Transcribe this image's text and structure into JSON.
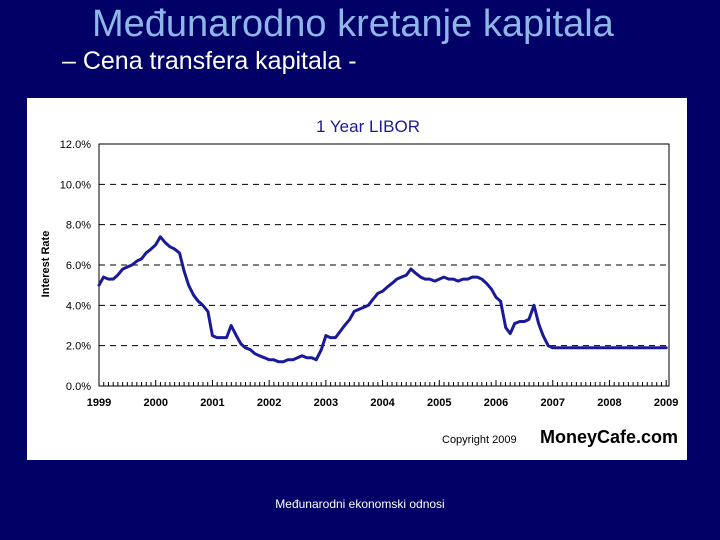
{
  "slide": {
    "title": "Međunarodno kretanje kapitala",
    "subtitle": "– Cena transfera kapitala -",
    "footer": "Međunarodni ekonomski odnosi"
  },
  "chart_data": {
    "type": "line",
    "title": "1 Year LIBOR",
    "ylabel": "Interest Rate",
    "xlabel": "",
    "ylim": [
      0,
      12
    ],
    "xlim": [
      1999,
      2009.05
    ],
    "y_ticks": [
      0,
      2,
      4,
      6,
      8,
      10,
      12
    ],
    "y_tick_labels": [
      "0.0%",
      "2.0%",
      "4.0%",
      "6.0%",
      "8.0%",
      "10.0%",
      "12.0%"
    ],
    "x_ticks": [
      1999,
      2000,
      2001,
      2002,
      2003,
      2004,
      2005,
      2006,
      2007,
      2008,
      2009
    ],
    "x_tick_labels": [
      "1999",
      "2000",
      "2001",
      "2002",
      "2003",
      "2004",
      "2005",
      "2006",
      "2007",
      "2008",
      "2009"
    ],
    "grid": "horizontal dashed",
    "copyright": "Copyright 2009",
    "brand": "MoneyCafe.com",
    "line_color": "#1a1a99",
    "series": [
      {
        "x": [
          1999.0,
          1999.08,
          1999.17,
          1999.25,
          1999.33,
          1999.42,
          1999.5,
          1999.58,
          1999.67,
          1999.75,
          1999.83,
          1999.92,
          2000.0,
          2000.08,
          2000.17,
          2000.25,
          2000.33,
          2000.42,
          2000.5,
          2000.58,
          2000.67,
          2000.75,
          2000.83,
          2000.92,
          2001.0,
          2001.08,
          2001.17,
          2001.25,
          2001.33,
          2001.42,
          2001.5,
          2001.58,
          2001.67,
          2001.75,
          2001.83,
          2001.92,
          2002.0,
          2002.08,
          2002.17,
          2002.25,
          2002.33,
          2002.42,
          2002.5,
          2002.58,
          2002.67,
          2002.75,
          2002.83,
          2002.92,
          2003.0,
          2003.08,
          2003.17,
          2003.25,
          2003.33,
          2003.42,
          2003.5,
          2003.58,
          2003.67,
          2003.75,
          2003.83,
          2003.92,
          2004.0,
          2004.08,
          2004.17,
          2004.25,
          2004.33,
          2004.42,
          2004.5,
          2004.58,
          2004.67,
          2004.75,
          2004.83,
          2004.92,
          2005.0,
          2005.08,
          2005.17,
          2005.25,
          2005.33,
          2005.42,
          2005.5,
          2005.58,
          2005.67,
          2005.75,
          2005.83,
          2005.92,
          2006.0,
          2006.08,
          2006.17,
          2006.25,
          2006.33,
          2006.42,
          2006.5,
          2006.58,
          2006.67,
          2006.75,
          2006.83,
          2006.92,
          2007.0,
          2007.08,
          2007.17,
          2007.25,
          2007.33,
          2007.42,
          2007.5,
          2007.58,
          2007.67,
          2007.75,
          2007.83,
          2007.92,
          2008.0,
          2008.08,
          2008.17,
          2008.25,
          2008.33,
          2008.42,
          2008.5,
          2008.58,
          2008.67,
          2008.75,
          2008.83,
          2008.92,
          2009.0
        ],
        "values": [
          5.0,
          5.4,
          5.3,
          5.3,
          5.5,
          5.8,
          5.9,
          6.0,
          6.2,
          6.3,
          6.6,
          6.8,
          7.0,
          7.4,
          7.1,
          6.9,
          6.8,
          6.6,
          5.7,
          5.0,
          4.5,
          4.2,
          4.0,
          3.7,
          2.5,
          2.4,
          2.4,
          2.4,
          3.0,
          2.5,
          2.1,
          1.9,
          1.8,
          1.6,
          1.5,
          1.4,
          1.3,
          1.3,
          1.2,
          1.2,
          1.3,
          1.3,
          1.4,
          1.5,
          1.4,
          1.4,
          1.3,
          1.8,
          2.5,
          2.4,
          2.4,
          2.7,
          3.0,
          3.3,
          3.7,
          3.8,
          3.9,
          4.0,
          4.3,
          4.6,
          4.7,
          4.9,
          5.1,
          5.3,
          5.4,
          5.5,
          5.8,
          5.6,
          5.4,
          5.3,
          5.3,
          5.2,
          5.3,
          5.4,
          5.3,
          5.3,
          5.2,
          5.3,
          5.3,
          5.4,
          5.4,
          5.3,
          5.1,
          4.8,
          4.4,
          4.2,
          2.9,
          2.6,
          3.1,
          3.2,
          3.2,
          3.3,
          4.0,
          3.1,
          2.5,
          2.0,
          1.9,
          1.9,
          1.9,
          1.9,
          1.9,
          1.9,
          1.9,
          1.9,
          1.9,
          1.9,
          1.9,
          1.9,
          1.9,
          1.9,
          1.9,
          1.9,
          1.9,
          1.9,
          1.9,
          1.9,
          1.9,
          1.9,
          1.9,
          1.9,
          1.9
        ]
      }
    ]
  }
}
